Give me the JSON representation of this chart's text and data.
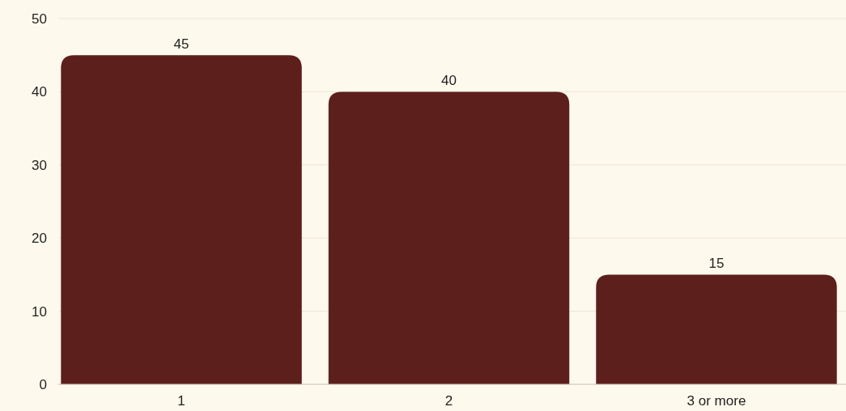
{
  "chart_data": {
    "type": "bar",
    "categories": [
      "1",
      "2",
      "3 or more"
    ],
    "values": [
      45,
      40,
      15
    ],
    "color": "#5c1f1c",
    "ylim": [
      0,
      50
    ],
    "yticks": [
      0,
      10,
      20,
      30,
      40,
      50
    ],
    "grid": "y",
    "data_labels": true
  }
}
